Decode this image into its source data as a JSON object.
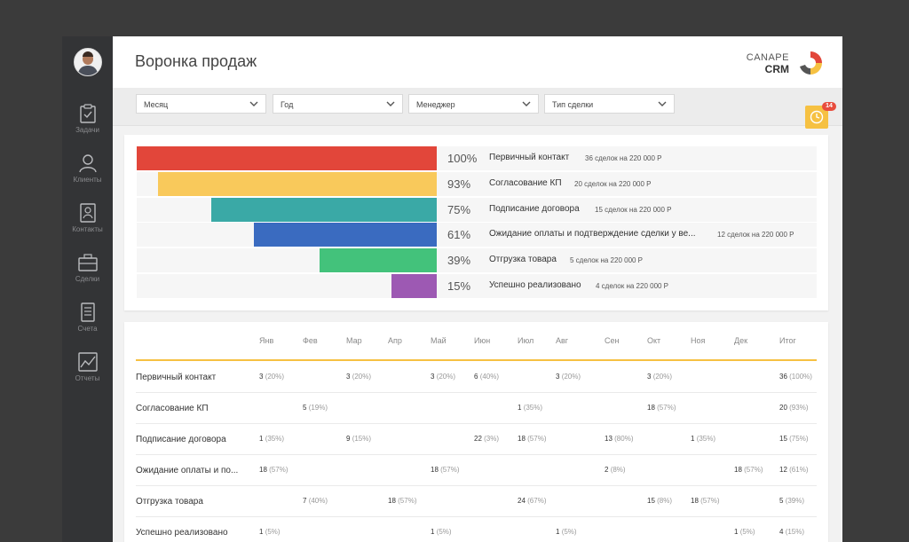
{
  "app": {
    "title": "Воронка продаж",
    "logo_line1": "CANAPE",
    "logo_line2": "CRM"
  },
  "sidebar": {
    "items": [
      {
        "label": "Задачи",
        "icon": "clipboard-check-icon"
      },
      {
        "label": "Клиенты",
        "icon": "user-icon"
      },
      {
        "label": "Контакты",
        "icon": "contact-card-icon"
      },
      {
        "label": "Сделки",
        "icon": "briefcase-icon"
      },
      {
        "label": "Счета",
        "icon": "invoice-icon"
      },
      {
        "label": "Отчеты",
        "icon": "chart-icon"
      }
    ]
  },
  "filters": [
    {
      "label": "Месяц"
    },
    {
      "label": "Год"
    },
    {
      "label": "Менеджер"
    },
    {
      "label": "Тип сделки"
    }
  ],
  "notification": {
    "count": "14",
    "icon": "clock-icon"
  },
  "funnel": [
    {
      "pct": "100%",
      "fill": 1.0,
      "stage": "Первичный контакт",
      "details": "36 сделок на 220 000 Р",
      "color": "#e2463a"
    },
    {
      "pct": "93%",
      "fill": 0.93,
      "stage": "Согласование КП",
      "details": "20 сделок на 220 000 Р",
      "color": "#f9c95b"
    },
    {
      "pct": "75%",
      "fill": 0.75,
      "stage": "Подписание договора",
      "details": "15 сделок на 220 000 Р",
      "color": "#3aa9a6"
    },
    {
      "pct": "61%",
      "fill": 0.61,
      "stage": "Ожидание оплаты и подтверждение сделки у ве...",
      "details": "12 сделок на 220 000 Р",
      "color": "#3a6bc0"
    },
    {
      "pct": "39%",
      "fill": 0.39,
      "stage": "Отгрузка товара",
      "details": "5 сделок на 220 000 Р",
      "color": "#43c27b"
    },
    {
      "pct": "15%",
      "fill": 0.15,
      "stage": "Успешно реализовано",
      "details": "4 сделок на 220 000 Р",
      "color": "#9d59b3"
    }
  ],
  "table": {
    "columns": [
      "Янв",
      "Фев",
      "Мар",
      "Апр",
      "Май",
      "Июн",
      "Июл",
      "Авг",
      "Сен",
      "Окт",
      "Ноя",
      "Дек",
      "Итог"
    ],
    "rows": [
      {
        "label": "Первичный контакт",
        "cells": [
          [
            "3",
            "(20%)"
          ],
          null,
          [
            "3",
            "(20%)"
          ],
          null,
          [
            "3",
            "(20%)"
          ],
          [
            "6",
            "(40%)"
          ],
          null,
          [
            "3",
            "(20%)"
          ],
          null,
          [
            "3",
            "(20%)"
          ],
          null,
          null,
          [
            "36",
            "(100%)"
          ]
        ]
      },
      {
        "label": "Согласование КП",
        "cells": [
          null,
          [
            "5",
            "(19%)"
          ],
          null,
          null,
          null,
          null,
          [
            "1",
            "(35%)"
          ],
          null,
          null,
          [
            "18",
            "(57%)"
          ],
          null,
          null,
          [
            "20",
            "(93%)"
          ]
        ]
      },
      {
        "label": "Подписание договора",
        "cells": [
          [
            "1",
            "(35%)"
          ],
          null,
          [
            "9",
            "(15%)"
          ],
          null,
          null,
          [
            "22",
            "(3%)"
          ],
          [
            "18",
            "(57%)"
          ],
          null,
          [
            "13",
            "(80%)"
          ],
          null,
          [
            "1",
            "(35%)"
          ],
          null,
          [
            "15",
            "(75%)"
          ]
        ]
      },
      {
        "label": "Ожидание оплаты и по...",
        "cells": [
          [
            "18",
            "(57%)"
          ],
          null,
          null,
          null,
          [
            "18",
            "(57%)"
          ],
          null,
          null,
          null,
          [
            "2",
            "(8%)"
          ],
          null,
          null,
          [
            "18",
            "(57%)"
          ],
          [
            "12",
            "(61%)"
          ]
        ]
      },
      {
        "label": "Отгрузка товара",
        "cells": [
          null,
          [
            "7",
            "(40%)"
          ],
          null,
          [
            "18",
            "(57%)"
          ],
          null,
          null,
          [
            "24",
            "(67%)"
          ],
          null,
          null,
          [
            "15",
            "(8%)"
          ],
          [
            "18",
            "(57%)"
          ],
          null,
          [
            "5",
            "(39%)"
          ]
        ]
      },
      {
        "label": "Успешно реализовано",
        "cells": [
          [
            "1",
            "(5%)"
          ],
          null,
          null,
          null,
          [
            "1",
            "(5%)"
          ],
          null,
          null,
          [
            "1",
            "(5%)"
          ],
          null,
          null,
          null,
          [
            "1",
            "(5%)"
          ],
          [
            "4",
            "(15%)"
          ]
        ]
      }
    ]
  }
}
